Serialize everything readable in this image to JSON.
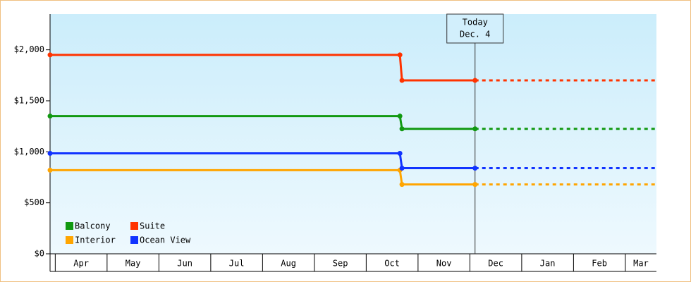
{
  "chart_data": {
    "type": "line",
    "x": [
      -0.1,
      6.65,
      6.69,
      8.1,
      11.6
    ],
    "xlim": [
      -0.1,
      11.6
    ],
    "xticks": [
      {
        "value": 0,
        "label": "Apr"
      },
      {
        "value": 1,
        "label": "May"
      },
      {
        "value": 2,
        "label": "Jun"
      },
      {
        "value": 3,
        "label": "Jul"
      },
      {
        "value": 4,
        "label": "Aug"
      },
      {
        "value": 5,
        "label": "Sep"
      },
      {
        "value": 6,
        "label": "Oct"
      },
      {
        "value": 7,
        "label": "Nov"
      },
      {
        "value": 8,
        "label": "Dec"
      },
      {
        "value": 9,
        "label": "Jan"
      },
      {
        "value": 10,
        "label": "Feb"
      },
      {
        "value": 11,
        "label": "Mar"
      }
    ],
    "ylim": [
      0,
      2350
    ],
    "yticks": [
      {
        "value": 0,
        "label": "$0"
      },
      {
        "value": 500,
        "label": "$500"
      },
      {
        "value": 1000,
        "label": "$1,000"
      },
      {
        "value": 1500,
        "label": "$1,500"
      },
      {
        "value": 2000,
        "label": "$2,000"
      }
    ],
    "series": [
      {
        "name": "Balcony",
        "color": "#119911",
        "values": [
          1350,
          1350,
          1225,
          1225,
          1225
        ]
      },
      {
        "name": "Suite",
        "color": "#ff3300",
        "values": [
          1950,
          1950,
          1700,
          1700,
          1700
        ]
      },
      {
        "name": "Interior",
        "color": "#ffa500",
        "values": [
          820,
          820,
          680,
          680,
          680
        ]
      },
      {
        "name": "Ocean View",
        "color": "#1133ff",
        "values": [
          985,
          985,
          840,
          840,
          840
        ]
      }
    ],
    "today": {
      "x": 8.1,
      "label": [
        "Today",
        "Dec. 4"
      ]
    },
    "legend": "lower left"
  }
}
